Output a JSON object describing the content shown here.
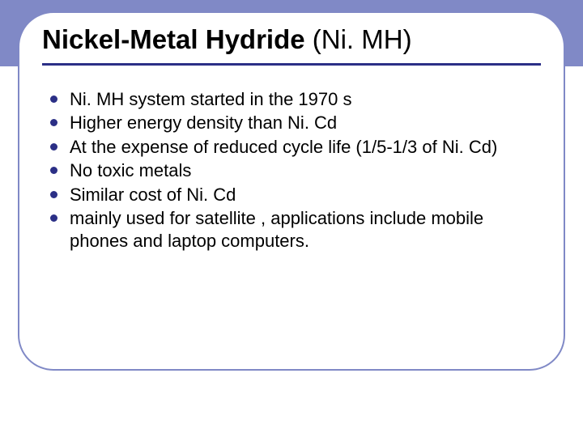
{
  "colors": {
    "band": "#8089c6",
    "card_border": "#8089c6",
    "underline": "#2b2f86",
    "bullet": "#2b2f86",
    "text": "#000000",
    "background": "#ffffff"
  },
  "title": {
    "bold_part": "Nickel-Metal Hydride",
    "plain_part": " (Ni. MH)",
    "fontsize_pt": 25,
    "font_family": "Arial"
  },
  "bullets": {
    "fontsize_pt": 17,
    "font_family": "Arial",
    "items": [
      "Ni. MH system started in the 1970 s",
      "Higher energy density  than Ni. Cd",
      "At the expense of reduced cycle life (1/5-1/3 of Ni. Cd)",
      "No toxic metals",
      "Similar cost of Ni. Cd",
      "mainly used for satellite , applications include mobile phones and laptop computers."
    ]
  },
  "layout": {
    "slide_w": 720,
    "slide_h": 540,
    "band_h": 82,
    "card_radius": 44
  }
}
